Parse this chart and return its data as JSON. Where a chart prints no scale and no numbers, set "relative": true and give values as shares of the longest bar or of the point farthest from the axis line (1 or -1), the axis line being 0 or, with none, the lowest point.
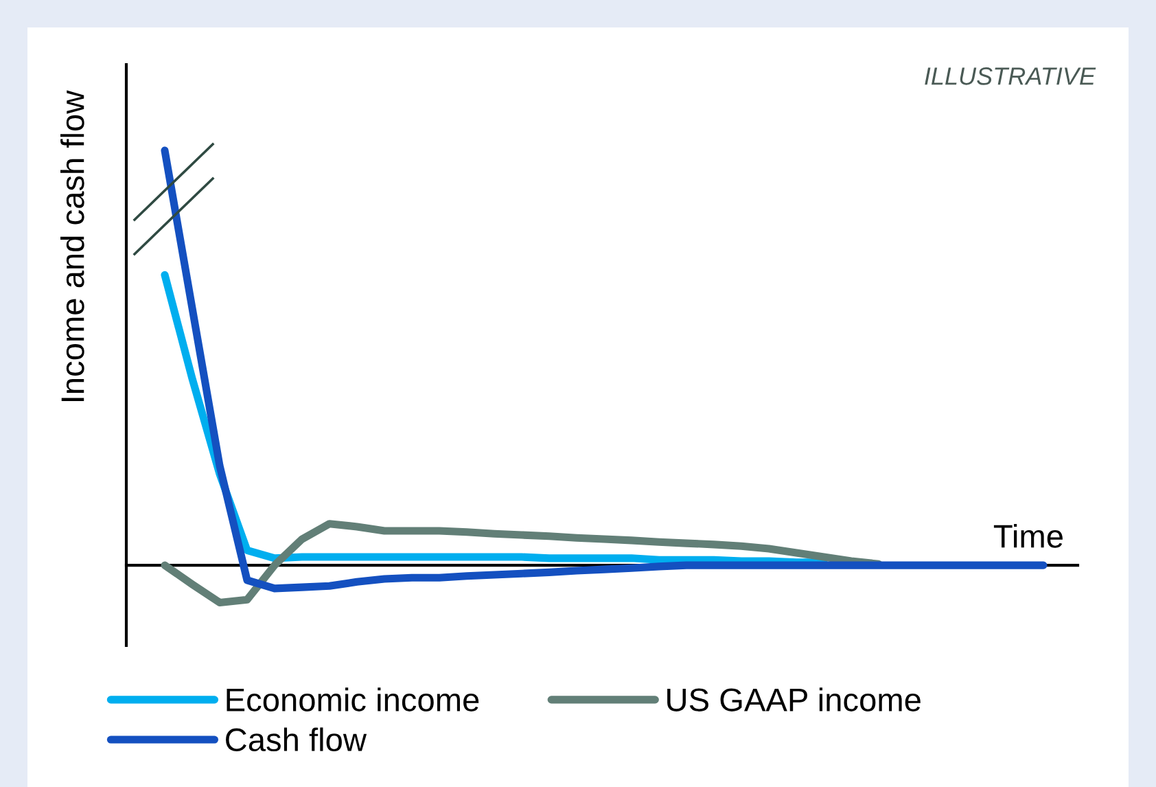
{
  "chart_data": {
    "type": "line",
    "relative": true,
    "xlabel": "Time",
    "ylabel": "Income and cash flow",
    "annotations": [
      "ILLUSTRATIVE"
    ],
    "legend": "bottom",
    "categories": [
      null,
      null,
      null,
      null,
      null,
      null,
      null,
      null,
      null,
      null,
      null,
      null,
      null,
      null,
      null,
      null,
      null,
      null,
      null,
      null,
      null,
      null,
      null,
      null,
      null,
      null,
      null,
      null,
      null,
      null,
      null,
      null,
      null
    ],
    "series": [
      {
        "name": "Economic income",
        "color": "#00aeef",
        "values": [
          0.7,
          0.45,
          0.22,
          0.036,
          0.017,
          0.02,
          0.02,
          0.02,
          0.02,
          0.02,
          0.02,
          0.02,
          0.02,
          0.02,
          0.017,
          0.017,
          0.017,
          0.017,
          0.013,
          0.013,
          0.013,
          0.01,
          0.01,
          0.007,
          0.007,
          null,
          null,
          null,
          null,
          null,
          null,
          null,
          null
        ]
      },
      {
        "name": "US GAAP income",
        "color": "#627f77",
        "values": [
          0,
          -0.046,
          -0.09,
          -0.083,
          0,
          0.063,
          0.1,
          0.093,
          0.083,
          0.083,
          0.083,
          0.08,
          0.076,
          0.073,
          0.07,
          0.066,
          0.063,
          0.06,
          0.056,
          0.053,
          0.05,
          0.046,
          0.04,
          0.03,
          0.02,
          0.01,
          0.003,
          null,
          null,
          null,
          null,
          null,
          null
        ]
      },
      {
        "name": "Cash flow",
        "color": "#1450c0",
        "values": [
          1.0,
          0.62,
          0.24,
          -0.036,
          -0.056,
          -0.053,
          -0.05,
          -0.04,
          -0.033,
          -0.03,
          -0.03,
          -0.026,
          -0.023,
          -0.02,
          -0.017,
          -0.013,
          -0.01,
          -0.007,
          -0.003,
          0,
          0,
          0,
          0,
          0,
          0,
          0,
          0,
          0,
          0,
          0,
          0,
          0,
          0
        ]
      }
    ]
  }
}
